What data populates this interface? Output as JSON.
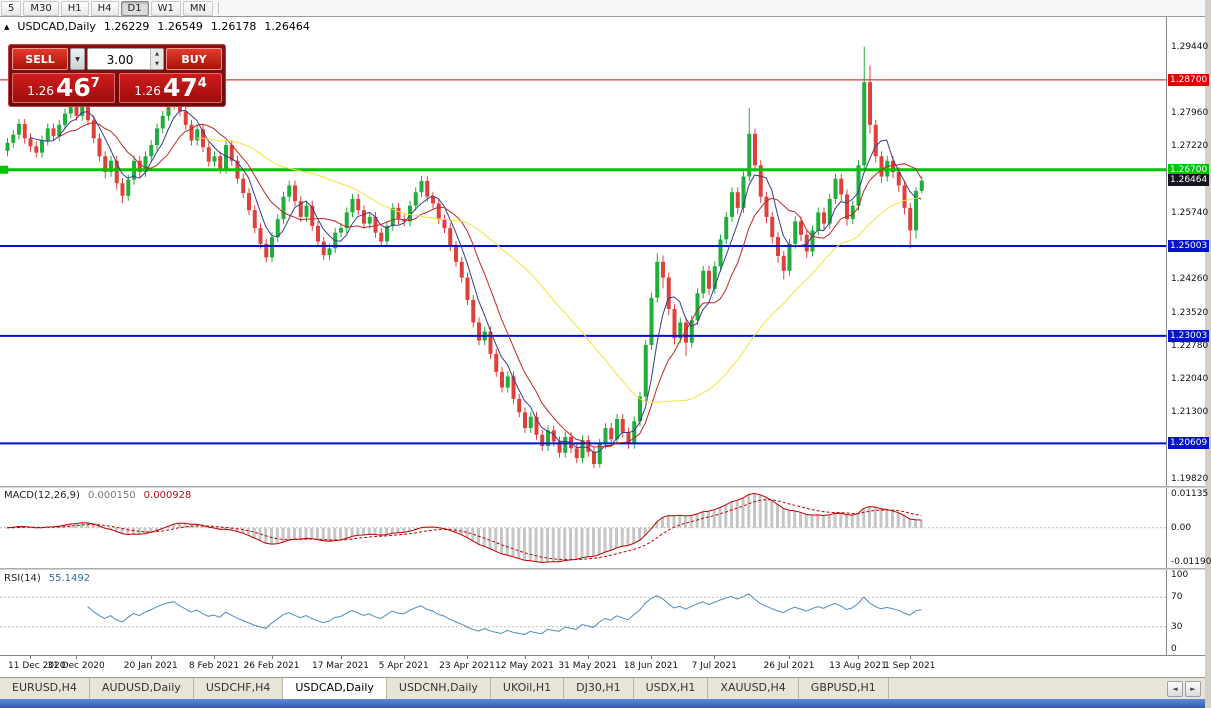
{
  "icons": {
    "triangle_up": "▲",
    "triangle_down": "▼",
    "arrow_left": "◄",
    "arrow_right": "►"
  },
  "toolbar": {
    "timeframes": [
      "5",
      "M30",
      "H1",
      "H4",
      "D1",
      "W1",
      "MN"
    ],
    "active": "D1"
  },
  "chart_header": {
    "symbol": "USDCAD,Daily",
    "open": "1.26229",
    "high": "1.26549",
    "low": "1.26178",
    "close": "1.26464"
  },
  "trade_panel": {
    "sell_label": "SELL",
    "buy_label": "BUY",
    "volume": "3.00",
    "sell_price": {
      "big": "1.26",
      "pips": "46",
      "pt": "7"
    },
    "buy_price": {
      "big": "1.26",
      "pips": "47",
      "pt": "4"
    }
  },
  "macd": {
    "label": "MACD(12,26,9)",
    "value_main": "0.000150",
    "value_signal": "0.000928",
    "axis_top": "0.01135",
    "axis_zero": "0.00",
    "axis_bottom": "-0.01190",
    "fast": 12,
    "slow": 26,
    "signal": 9,
    "histogram_color": "#c6c6c6",
    "line_color": "#c00000"
  },
  "rsi": {
    "label": "RSI(14)",
    "value": "55.1492",
    "period": 14,
    "color": "#4f8bc0",
    "axis_labels": [
      {
        "v": 100,
        "text": "100"
      },
      {
        "v": 70,
        "text": "70"
      },
      {
        "v": 30,
        "text": "30"
      },
      {
        "v": 0,
        "text": "0"
      }
    ],
    "levels": [
      70,
      30
    ]
  },
  "tabs": {
    "items": [
      "EURUSD,H4",
      "AUDUSD,Daily",
      "USDCHF,H4",
      "USDCAD,Daily",
      "USDCNH,Daily",
      "UKOil,H1",
      "DJ30,H1",
      "USDX,H1",
      "XAUUSD,H4",
      "GBPUSD,H1"
    ],
    "active_index": 3
  },
  "chart_data": {
    "type": "candlestick",
    "symbol": "USDCAD",
    "timeframe": "Daily",
    "up_color": "#1fae3a",
    "down_color": "#e0403a",
    "y_axis": {
      "min": 1.1966,
      "max": 1.301,
      "tick_start": 1.2944,
      "tick_step": 0.0074,
      "tick_count": 14,
      "decimals": 5
    },
    "levels": [
      {
        "price": 1.287,
        "label": "1.28700",
        "color": "#e00000",
        "width": 1
      },
      {
        "price": 1.267,
        "label": "1.26700",
        "color": "#00c300",
        "width": 3,
        "anchor": true
      },
      {
        "price": 1.25003,
        "label": "1.25003",
        "color": "#0012cc",
        "width": 2
      },
      {
        "price": 1.23003,
        "label": "1.23003",
        "color": "#0012cc",
        "width": 2
      },
      {
        "price": 1.20609,
        "label": "1.20609",
        "color": "#0012cc",
        "width": 2
      }
    ],
    "current_price": {
      "value": 1.26464,
      "label": "1.26464",
      "color": "#14141e"
    },
    "moving_averages": [
      {
        "period": 5,
        "color": "#3a3a8c"
      },
      {
        "period": 10,
        "color": "#c22727"
      },
      {
        "period": 34,
        "color": "#f2e33a"
      }
    ],
    "x_labels": [
      {
        "index": 4,
        "text": "11 Dec 2020"
      },
      {
        "index": 12,
        "text": "31 Dec 2020"
      },
      {
        "index": 25,
        "text": "20 Jan 2021"
      },
      {
        "index": 36,
        "text": "8 Feb 2021"
      },
      {
        "index": 46,
        "text": "26 Feb 2021"
      },
      {
        "index": 58,
        "text": "17 Mar 2021"
      },
      {
        "index": 69,
        "text": "5 Apr 2021"
      },
      {
        "index": 80,
        "text": "23 Apr 2021"
      },
      {
        "index": 90,
        "text": "12 May 2021"
      },
      {
        "index": 101,
        "text": "31 May 2021"
      },
      {
        "index": 112,
        "text": "18 Jun 2021"
      },
      {
        "index": 123,
        "text": "7 Jul 2021"
      },
      {
        "index": 136,
        "text": "26 Jul 2021"
      },
      {
        "index": 148,
        "text": "13 Aug 2021"
      },
      {
        "index": 157,
        "text": "1 Sep 2021"
      }
    ],
    "candles": [
      [
        1.2712,
        1.2741,
        1.27,
        1.273
      ],
      [
        1.273,
        1.2759,
        1.2719,
        1.2748
      ],
      [
        1.2748,
        1.2783,
        1.2737,
        1.2772
      ],
      [
        1.2772,
        1.2783,
        1.2728,
        1.274
      ],
      [
        1.274,
        1.2751,
        1.271,
        1.2722
      ],
      [
        1.2722,
        1.2733,
        1.2697,
        1.2708
      ],
      [
        1.2708,
        1.2746,
        1.2697,
        1.2735
      ],
      [
        1.2735,
        1.2773,
        1.2724,
        1.2762
      ],
      [
        1.2762,
        1.2773,
        1.2734,
        1.2745
      ],
      [
        1.2745,
        1.2781,
        1.2734,
        1.277
      ],
      [
        1.277,
        1.2806,
        1.2759,
        1.2795
      ],
      [
        1.2795,
        1.2823,
        1.2784,
        1.2812
      ],
      [
        1.2812,
        1.2823,
        1.2779,
        1.279
      ],
      [
        1.279,
        1.2838,
        1.2779,
        1.282
      ],
      [
        1.282,
        1.2831,
        1.2769,
        1.278
      ],
      [
        1.278,
        1.2791,
        1.2729,
        1.274
      ],
      [
        1.274,
        1.2751,
        1.2689,
        1.27
      ],
      [
        1.27,
        1.2711,
        1.2651,
        1.2665
      ],
      [
        1.2665,
        1.2701,
        1.2654,
        1.269
      ],
      [
        1.269,
        1.2701,
        1.2626,
        1.264
      ],
      [
        1.264,
        1.2651,
        1.2596,
        1.2612
      ],
      [
        1.2612,
        1.2659,
        1.2601,
        1.2648
      ],
      [
        1.2648,
        1.2701,
        1.2637,
        1.269
      ],
      [
        1.269,
        1.2701,
        1.2654,
        1.2665
      ],
      [
        1.2665,
        1.2711,
        1.2654,
        1.27
      ],
      [
        1.27,
        1.2736,
        1.2689,
        1.2725
      ],
      [
        1.2725,
        1.2773,
        1.2714,
        1.2762
      ],
      [
        1.2762,
        1.2801,
        1.2751,
        1.279
      ],
      [
        1.279,
        1.2826,
        1.2779,
        1.2815
      ],
      [
        1.2815,
        1.2855,
        1.2804,
        1.2835
      ],
      [
        1.2835,
        1.2846,
        1.2789,
        1.28
      ],
      [
        1.28,
        1.2811,
        1.2759,
        1.277
      ],
      [
        1.277,
        1.2781,
        1.2724,
        1.2735
      ],
      [
        1.2735,
        1.2771,
        1.2724,
        1.276
      ],
      [
        1.276,
        1.2771,
        1.2709,
        1.272
      ],
      [
        1.272,
        1.2731,
        1.2677,
        1.2688
      ],
      [
        1.2688,
        1.2711,
        1.2677,
        1.27
      ],
      [
        1.27,
        1.2711,
        1.2661,
        1.2672
      ],
      [
        1.2672,
        1.2736,
        1.2661,
        1.2725
      ],
      [
        1.2725,
        1.2736,
        1.2679,
        1.269
      ],
      [
        1.269,
        1.2701,
        1.2639,
        1.265
      ],
      [
        1.265,
        1.2661,
        1.2607,
        1.2618
      ],
      [
        1.2618,
        1.2629,
        1.2569,
        1.258
      ],
      [
        1.258,
        1.2591,
        1.2529,
        1.254
      ],
      [
        1.254,
        1.2551,
        1.2494,
        1.2505
      ],
      [
        1.2505,
        1.2516,
        1.2464,
        1.2475
      ],
      [
        1.2475,
        1.2531,
        1.2464,
        1.252
      ],
      [
        1.252,
        1.2571,
        1.2509,
        1.256
      ],
      [
        1.256,
        1.2621,
        1.2549,
        1.261
      ],
      [
        1.261,
        1.2646,
        1.2599,
        1.2635
      ],
      [
        1.2635,
        1.2646,
        1.2589,
        1.26
      ],
      [
        1.26,
        1.2611,
        1.2554,
        1.2565
      ],
      [
        1.2565,
        1.2601,
        1.2554,
        1.259
      ],
      [
        1.259,
        1.2601,
        1.2534,
        1.2545
      ],
      [
        1.2545,
        1.2556,
        1.2499,
        1.251
      ],
      [
        1.251,
        1.2521,
        1.2469,
        1.248
      ],
      [
        1.248,
        1.2506,
        1.2469,
        1.2495
      ],
      [
        1.2495,
        1.2541,
        1.2484,
        1.253
      ],
      [
        1.253,
        1.2551,
        1.2519,
        1.254
      ],
      [
        1.254,
        1.2586,
        1.2529,
        1.2575
      ],
      [
        1.2575,
        1.2616,
        1.2564,
        1.2605
      ],
      [
        1.2605,
        1.2616,
        1.2569,
        1.258
      ],
      [
        1.258,
        1.2591,
        1.2539,
        1.255
      ],
      [
        1.255,
        1.2576,
        1.2539,
        1.2565
      ],
      [
        1.2565,
        1.2576,
        1.2519,
        1.253
      ],
      [
        1.253,
        1.2541,
        1.2499,
        1.251
      ],
      [
        1.251,
        1.2556,
        1.2499,
        1.2545
      ],
      [
        1.2545,
        1.2596,
        1.2534,
        1.2585
      ],
      [
        1.2585,
        1.2596,
        1.2549,
        1.256
      ],
      [
        1.256,
        1.2571,
        1.2544,
        1.2555
      ],
      [
        1.2555,
        1.2601,
        1.2544,
        1.259
      ],
      [
        1.259,
        1.2631,
        1.2579,
        1.262
      ],
      [
        1.262,
        1.2656,
        1.2609,
        1.2645
      ],
      [
        1.2645,
        1.2656,
        1.2599,
        1.261
      ],
      [
        1.261,
        1.2621,
        1.2584,
        1.2595
      ],
      [
        1.2595,
        1.2606,
        1.2549,
        1.256
      ],
      [
        1.256,
        1.2571,
        1.2529,
        1.254
      ],
      [
        1.254,
        1.2551,
        1.2489,
        1.25
      ],
      [
        1.25,
        1.2511,
        1.2454,
        1.2465
      ],
      [
        1.2465,
        1.2476,
        1.2419,
        1.243
      ],
      [
        1.243,
        1.2441,
        1.2369,
        1.238
      ],
      [
        1.238,
        1.2391,
        1.2319,
        1.233
      ],
      [
        1.233,
        1.2341,
        1.2279,
        1.229
      ],
      [
        1.229,
        1.2321,
        1.2279,
        1.231
      ],
      [
        1.231,
        1.2321,
        1.2249,
        1.226
      ],
      [
        1.226,
        1.2271,
        1.2209,
        1.222
      ],
      [
        1.222,
        1.2231,
        1.2174,
        1.2185
      ],
      [
        1.2185,
        1.2221,
        1.2174,
        1.221
      ],
      [
        1.221,
        1.2221,
        1.2149,
        1.216
      ],
      [
        1.216,
        1.2171,
        1.2119,
        1.213
      ],
      [
        1.213,
        1.2141,
        1.2084,
        1.2095
      ],
      [
        1.2095,
        1.2131,
        1.2084,
        1.212
      ],
      [
        1.212,
        1.2131,
        1.2069,
        1.208
      ],
      [
        1.208,
        1.2091,
        1.2044,
        1.2055
      ],
      [
        1.2055,
        1.2101,
        1.2044,
        1.209
      ],
      [
        1.209,
        1.2101,
        1.2054,
        1.2065
      ],
      [
        1.2065,
        1.2076,
        1.2029,
        1.204
      ],
      [
        1.204,
        1.2086,
        1.2029,
        1.2075
      ],
      [
        1.2075,
        1.2086,
        1.2039,
        1.205
      ],
      [
        1.205,
        1.2061,
        1.2017,
        1.2028
      ],
      [
        1.2028,
        1.2079,
        1.2017,
        1.2068
      ],
      [
        1.2068,
        1.2079,
        1.2031,
        1.2042
      ],
      [
        1.2042,
        1.2053,
        1.2006,
        1.2015
      ],
      [
        1.2015,
        1.2071,
        1.2007,
        1.206
      ],
      [
        1.206,
        1.2106,
        1.2049,
        1.2095
      ],
      [
        1.2095,
        1.2106,
        1.2059,
        1.207
      ],
      [
        1.207,
        1.2126,
        1.2059,
        1.2115
      ],
      [
        1.2115,
        1.2126,
        1.2074,
        1.2085
      ],
      [
        1.2085,
        1.2096,
        1.2049,
        1.206
      ],
      [
        1.206,
        1.2121,
        1.2049,
        1.211
      ],
      [
        1.211,
        1.2176,
        1.2099,
        1.2165
      ],
      [
        1.2165,
        1.2291,
        1.2154,
        1.228
      ],
      [
        1.228,
        1.2396,
        1.2269,
        1.2385
      ],
      [
        1.2385,
        1.2484,
        1.2374,
        1.2465
      ],
      [
        1.2465,
        1.2479,
        1.2406,
        1.243
      ],
      [
        1.243,
        1.2441,
        1.2346,
        1.236
      ],
      [
        1.236,
        1.2371,
        1.2281,
        1.2295
      ],
      [
        1.2295,
        1.2341,
        1.2284,
        1.233
      ],
      [
        1.233,
        1.2341,
        1.2256,
        1.2285
      ],
      [
        1.2285,
        1.2346,
        1.2274,
        1.2335
      ],
      [
        1.2335,
        1.2406,
        1.2324,
        1.2395
      ],
      [
        1.2395,
        1.2456,
        1.2384,
        1.2445
      ],
      [
        1.2445,
        1.2456,
        1.2391,
        1.2405
      ],
      [
        1.2405,
        1.2466,
        1.2394,
        1.2455
      ],
      [
        1.2455,
        1.2526,
        1.2444,
        1.2515
      ],
      [
        1.2515,
        1.2576,
        1.2504,
        1.2565
      ],
      [
        1.2565,
        1.2631,
        1.2554,
        1.262
      ],
      [
        1.262,
        1.2631,
        1.2571,
        1.2585
      ],
      [
        1.2585,
        1.2666,
        1.2574,
        1.2655
      ],
      [
        1.2655,
        1.2807,
        1.2644,
        1.275
      ],
      [
        1.275,
        1.2761,
        1.2666,
        1.268
      ],
      [
        1.268,
        1.2691,
        1.2596,
        1.261
      ],
      [
        1.261,
        1.2621,
        1.2551,
        1.2565
      ],
      [
        1.2565,
        1.2576,
        1.2506,
        1.252
      ],
      [
        1.252,
        1.2531,
        1.2463,
        1.2478
      ],
      [
        1.2478,
        1.2489,
        1.2426,
        1.2445
      ],
      [
        1.2445,
        1.2516,
        1.2434,
        1.2505
      ],
      [
        1.2505,
        1.2566,
        1.2494,
        1.2555
      ],
      [
        1.2555,
        1.2566,
        1.2511,
        1.2525
      ],
      [
        1.2525,
        1.2536,
        1.2474,
        1.2488
      ],
      [
        1.2488,
        1.2546,
        1.2477,
        1.2535
      ],
      [
        1.2535,
        1.2586,
        1.2524,
        1.2575
      ],
      [
        1.2575,
        1.2586,
        1.2536,
        1.255
      ],
      [
        1.255,
        1.2616,
        1.2539,
        1.2605
      ],
      [
        1.2605,
        1.2661,
        1.2594,
        1.265
      ],
      [
        1.265,
        1.2661,
        1.2601,
        1.2615
      ],
      [
        1.2615,
        1.2626,
        1.2546,
        1.256
      ],
      [
        1.256,
        1.2601,
        1.2549,
        1.259
      ],
      [
        1.259,
        1.2691,
        1.2579,
        1.268
      ],
      [
        1.268,
        1.2944,
        1.2669,
        1.2865
      ],
      [
        1.2865,
        1.2902,
        1.2751,
        1.277
      ],
      [
        1.277,
        1.2781,
        1.2686,
        1.27
      ],
      [
        1.27,
        1.2711,
        1.2641,
        1.2655
      ],
      [
        1.2655,
        1.2701,
        1.2644,
        1.269
      ],
      [
        1.269,
        1.2701,
        1.2651,
        1.2665
      ],
      [
        1.2665,
        1.2676,
        1.2621,
        1.2635
      ],
      [
        1.2635,
        1.2646,
        1.2571,
        1.2585
      ],
      [
        1.2585,
        1.2596,
        1.2495,
        1.2535
      ],
      [
        1.2535,
        1.2631,
        1.2516,
        1.2623
      ],
      [
        1.2623,
        1.2655,
        1.2618,
        1.2646
      ]
    ]
  }
}
